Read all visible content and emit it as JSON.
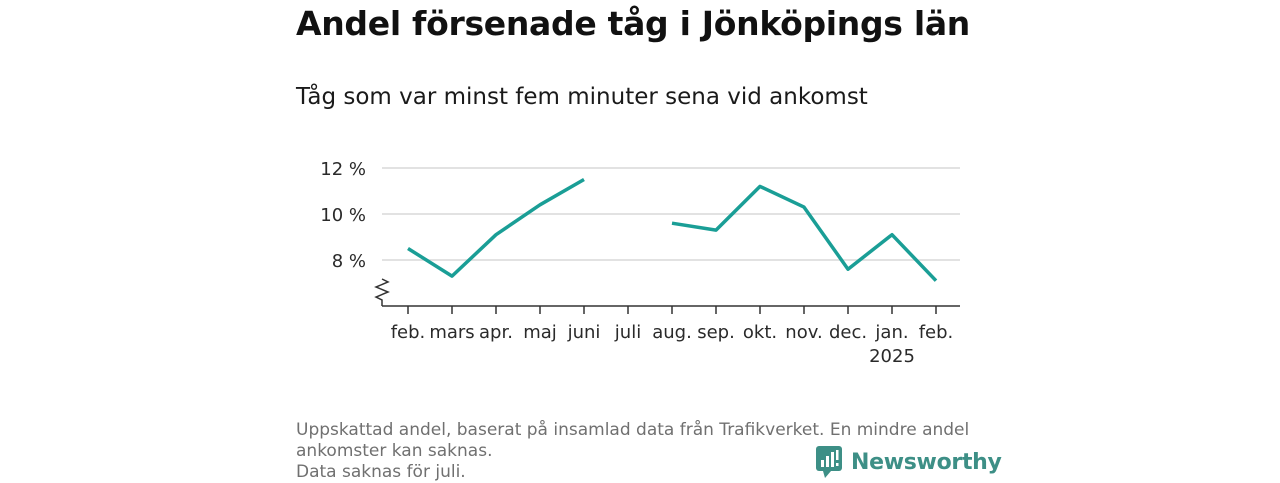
{
  "header": {
    "title": "Andel försenade tåg i Jönköpings län",
    "subtitle": "Tåg som var minst fem minuter sena vid ankomst"
  },
  "chart_data": {
    "type": "line",
    "categories": [
      "feb.",
      "mars",
      "apr.",
      "maj",
      "juni",
      "juli",
      "aug.",
      "sep.",
      "okt.",
      "nov.",
      "dec.",
      "jan.",
      "feb."
    ],
    "year_label": "2025",
    "series": [
      {
        "color": "#1a9e96",
        "values": [
          8.5,
          7.3,
          9.1,
          10.4,
          11.5,
          null,
          9.6,
          9.3,
          11.2,
          10.3,
          7.6,
          9.1,
          7.1
        ]
      }
    ],
    "y_ticks": [
      8,
      10,
      12
    ],
    "y_tick_labels": [
      "8 %",
      "10 %",
      "12 %"
    ],
    "ylim": [
      6.0,
      12.0
    ],
    "axis_break": true,
    "grid": true
  },
  "footnote": {
    "line1": "Uppskattad andel, baserat på insamlad data från Trafikverket. En mindre andel",
    "line2": "ankomster kan saknas.",
    "line3": "Data saknas för juli."
  },
  "brand": {
    "name": "Newsworthy",
    "icon": "newsworthy-logo-icon",
    "color": "#3d8f86"
  }
}
